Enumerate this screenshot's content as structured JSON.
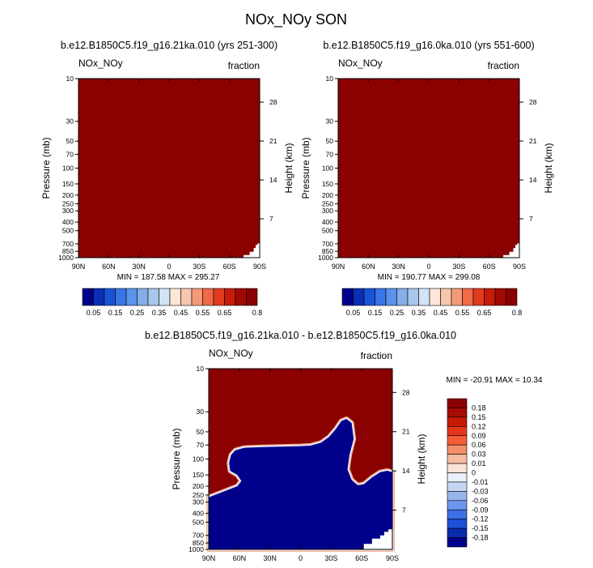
{
  "figure_title": "NOx_NOy SON",
  "colors": {
    "dark_red": "#8b0000",
    "navy": "#00008b",
    "white": "#ffffff"
  },
  "chart_data": [
    {
      "type": "heatmap",
      "title": "b.e12.B1850C5.f19_g16.21ka.010 (yrs 251-300)",
      "left_label": "NOx_NOy",
      "right_label": "fraction",
      "xlabel": "",
      "ylabel": "Pressure (mb)",
      "y2label": "Height (km)",
      "x_ticks": [
        "90N",
        "60N",
        "30N",
        "0",
        "30S",
        "60S",
        "90S"
      ],
      "y_ticks": [
        "10",
        "30",
        "50",
        "70",
        "100",
        "150",
        "200",
        "250",
        "300",
        "400",
        "500",
        "700",
        "850",
        "1000"
      ],
      "y2_ticks": [
        "28",
        "21",
        "14",
        "7"
      ],
      "ylim": [
        1000,
        10
      ],
      "y_scale": "log",
      "stats_text": "MIN = 187.58   MAX = 295.27",
      "min": 187.58,
      "max": 295.27,
      "field": "saturated above 0.8 everywhere except near-surface Antarctic topography (missing)",
      "colorbar": {
        "orientation": "horizontal",
        "labels": [
          "0.05",
          "0.15",
          "0.25",
          "0.35",
          "0.45",
          "0.55",
          "0.65",
          "0.8"
        ],
        "levels": [
          0.05,
          0.1,
          0.15,
          0.2,
          0.25,
          0.3,
          0.35,
          0.4,
          0.45,
          0.5,
          0.55,
          0.6,
          0.65,
          0.7,
          0.75,
          0.8
        ]
      }
    },
    {
      "type": "heatmap",
      "title": "b.e12.B1850C5.f19_g16.0ka.010 (yrs 551-600)",
      "left_label": "NOx_NOy",
      "right_label": "fraction",
      "xlabel": "",
      "ylabel": "Pressure (mb)",
      "y2label": "Height (km)",
      "x_ticks": [
        "90N",
        "60N",
        "30N",
        "0",
        "30S",
        "60S",
        "90S"
      ],
      "y_ticks": [
        "10",
        "30",
        "50",
        "70",
        "100",
        "150",
        "200",
        "250",
        "300",
        "400",
        "500",
        "700",
        "850",
        "1000"
      ],
      "y2_ticks": [
        "28",
        "21",
        "14",
        "7"
      ],
      "ylim": [
        1000,
        10
      ],
      "y_scale": "log",
      "stats_text": "MIN = 190.77   MAX = 299.08",
      "min": 190.77,
      "max": 299.08,
      "field": "saturated above 0.8 everywhere except near-surface Antarctic topography (missing)",
      "colorbar": {
        "orientation": "horizontal",
        "labels": [
          "0.05",
          "0.15",
          "0.25",
          "0.35",
          "0.45",
          "0.55",
          "0.65",
          "0.8"
        ],
        "levels": [
          0.05,
          0.1,
          0.15,
          0.2,
          0.25,
          0.3,
          0.35,
          0.4,
          0.45,
          0.5,
          0.55,
          0.6,
          0.65,
          0.7,
          0.75,
          0.8
        ]
      }
    },
    {
      "type": "heatmap",
      "title": "b.e12.B1850C5.f19_g16.21ka.010 - b.e12.B1850C5.f19_g16.0ka.010",
      "left_label": "NOx_NOy",
      "right_label": "fraction",
      "xlabel": "",
      "ylabel": "Pressure (mb)",
      "y2label": "Height (km)",
      "x_ticks": [
        "90N",
        "60N",
        "30N",
        "0",
        "30S",
        "60S",
        "90S"
      ],
      "y_ticks": [
        "10",
        "30",
        "50",
        "70",
        "100",
        "150",
        "200",
        "250",
        "300",
        "400",
        "500",
        "700",
        "850",
        "1000"
      ],
      "y2_ticks": [
        "28",
        "21",
        "14",
        "7"
      ],
      "ylim": [
        1000,
        10
      ],
      "y_scale": "log",
      "stats_text": "MIN = -20.91   MAX = 10.34",
      "min": -20.91,
      "max": 10.34,
      "field": "positive (>0.18) aloft, negative (<-0.18) in the troposphere; boundary near 70-100 mb at 70N-0, rising to ~40 mb near 45S, dipping to ~200 mb near 55S",
      "colorbar": {
        "orientation": "vertical",
        "labels": [
          "0.18",
          "0.15",
          "0.12",
          "0.09",
          "0.06",
          "0.03",
          "0.01",
          "0",
          "-0.01",
          "-0.03",
          "-0.06",
          "-0.09",
          "-0.12",
          "-0.15",
          "-0.18"
        ],
        "levels": [
          0.18,
          0.15,
          0.12,
          0.09,
          0.06,
          0.03,
          0.01,
          0,
          -0.01,
          -0.03,
          -0.06,
          -0.09,
          -0.12,
          -0.15,
          -0.18
        ]
      }
    }
  ]
}
